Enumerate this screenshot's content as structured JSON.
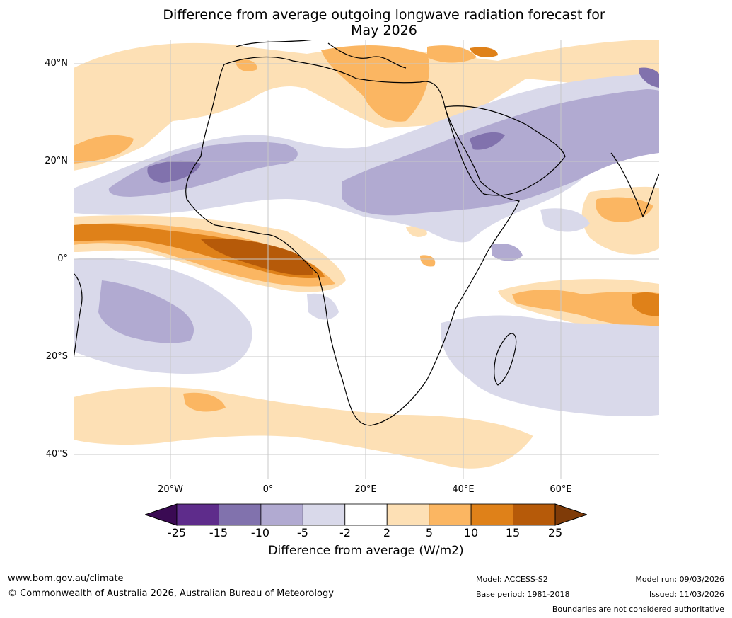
{
  "title_line1": "Difference from average outgoing longwave radiation forecast for",
  "title_line2": "May 2026",
  "lat_labels": [
    "40°N",
    "20°N",
    "0°",
    "20°S",
    "40°S"
  ],
  "lon_labels": [
    "20°W",
    "0°",
    "20°E",
    "40°E",
    "60°E"
  ],
  "colorbar": {
    "ticks": [
      "-25",
      "-15",
      "-10",
      "-5",
      "-2",
      "2",
      "5",
      "10",
      "15",
      "25"
    ],
    "colors": [
      "#3a0a53",
      "#5e2c8b",
      "#8172ad",
      "#b1aad1",
      "#d9d9ea",
      "#ffffff",
      "#fde0b5",
      "#fbb662",
      "#df8119",
      "#b65a09",
      "#7f3b08"
    ],
    "title": "Difference from average (W/m2)"
  },
  "footer": {
    "url": "www.bom.gov.au/climate",
    "copyright": "© Commonwealth of Australia 2026, Australian Bureau of Meteorology",
    "model": "Model: ACCESS-S2",
    "base_period": "Base period: 1981-2018",
    "model_run": "Model run: 09/03/2026",
    "issued": "Issued: 11/03/2026",
    "disclaimer": "Boundaries are not considered authoritative"
  }
}
